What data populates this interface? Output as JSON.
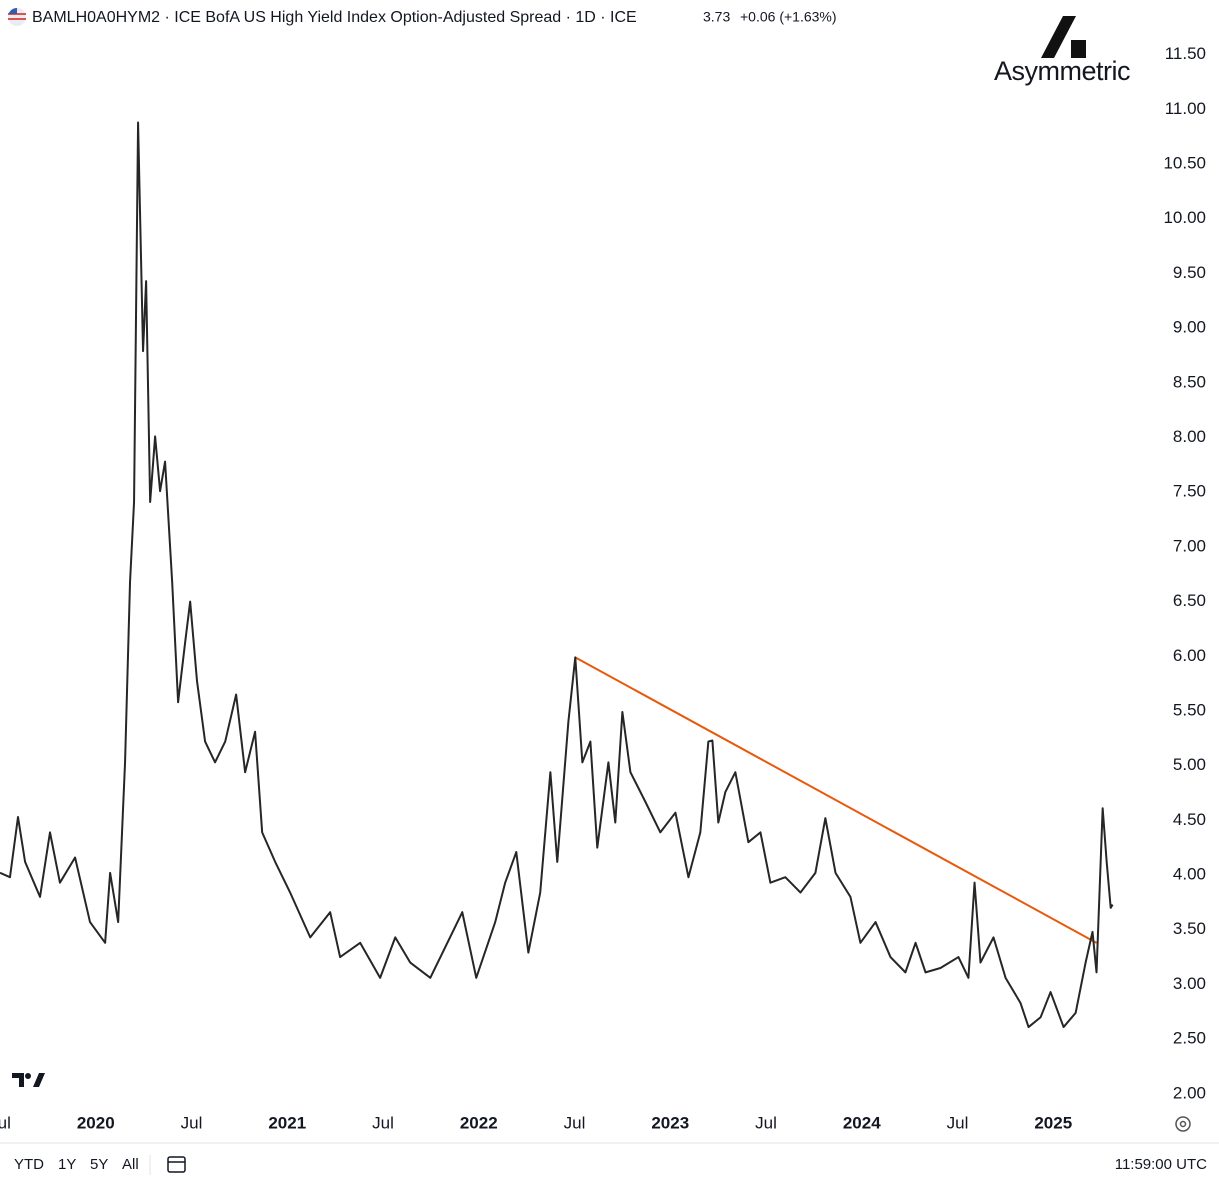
{
  "header": {
    "title": "BAMLH0A0HYM2 · ICE BofA US High Yield Index Option-Adjusted Spread · 1D · ICE",
    "last": "3.73",
    "change": "+0.06 (+1.63%)"
  },
  "logo": "Asymmetric",
  "toolbar": {
    "ranges": [
      "YTD",
      "1Y",
      "5Y",
      "All"
    ],
    "time": "11:59:00 UTC"
  },
  "chart_data": {
    "type": "line",
    "xlim": [
      2019.5,
      2025.5
    ],
    "ylim": [
      1.55,
      12.0
    ],
    "xticks": [
      {
        "value": 2019.5,
        "label": "Jul"
      },
      {
        "value": 2020,
        "label": "2020"
      },
      {
        "value": 2020.5,
        "label": "Jul"
      },
      {
        "value": 2021,
        "label": "2021"
      },
      {
        "value": 2021.5,
        "label": "Jul"
      },
      {
        "value": 2022,
        "label": "2022"
      },
      {
        "value": 2022.5,
        "label": "Jul"
      },
      {
        "value": 2023,
        "label": "2023"
      },
      {
        "value": 2023.5,
        "label": "Jul"
      },
      {
        "value": 2024,
        "label": "2024"
      },
      {
        "value": 2024.5,
        "label": "Jul"
      },
      {
        "value": 2025,
        "label": "2025"
      }
    ],
    "yticks": [
      {
        "value": 2,
        "label": "2.00"
      },
      {
        "value": 2.5,
        "label": "2.50"
      },
      {
        "value": 3,
        "label": "3.00"
      },
      {
        "value": 3.5,
        "label": "3.50"
      },
      {
        "value": 4,
        "label": "4.00"
      },
      {
        "value": 4.5,
        "label": "4.50"
      },
      {
        "value": 5,
        "label": "5.00"
      },
      {
        "value": 5.5,
        "label": "5.50"
      },
      {
        "value": 6,
        "label": "6.00"
      },
      {
        "value": 6.5,
        "label": "6.50"
      },
      {
        "value": 7,
        "label": "7.00"
      },
      {
        "value": 7.5,
        "label": "7.50"
      },
      {
        "value": 8,
        "label": "8.00"
      },
      {
        "value": 8.5,
        "label": "8.50"
      },
      {
        "value": 9,
        "label": "9.00"
      },
      {
        "value": 9.5,
        "label": "9.50"
      },
      {
        "value": 10,
        "label": "10.00"
      },
      {
        "value": 10.5,
        "label": "10.50"
      },
      {
        "value": 11,
        "label": "11.00"
      },
      {
        "value": 11.5,
        "label": "11.50"
      }
    ],
    "grid": false,
    "x": [
      2019.5,
      2019.552,
      2019.594,
      2019.631,
      2019.709,
      2019.761,
      2019.813,
      2019.892,
      2019.97,
      2020.049,
      2020.075,
      2020.117,
      2020.153,
      2020.179,
      2020.2,
      2020.221,
      2020.247,
      2020.263,
      2020.284,
      2020.31,
      2020.336,
      2020.362,
      2020.399,
      2020.43,
      2020.467,
      2020.493,
      2020.529,
      2020.571,
      2020.623,
      2020.676,
      2020.733,
      2020.78,
      2020.832,
      2020.869,
      2020.937,
      2021.015,
      2021.12,
      2021.224,
      2021.276,
      2021.381,
      2021.485,
      2021.564,
      2021.642,
      2021.747,
      2021.825,
      2021.914,
      2021.987,
      2022.086,
      2022.138,
      2022.196,
      2022.259,
      2022.321,
      2022.374,
      2022.41,
      2022.468,
      2022.504,
      2022.541,
      2022.583,
      2022.619,
      2022.677,
      2022.713,
      2022.75,
      2022.792,
      2022.87,
      2022.948,
      2023.027,
      2023.095,
      2023.157,
      2023.199,
      2023.22,
      2023.251,
      2023.288,
      2023.34,
      2023.408,
      2023.471,
      2023.523,
      2023.601,
      2023.68,
      2023.758,
      2023.81,
      2023.863,
      2023.941,
      2023.993,
      2024.072,
      2024.15,
      2024.228,
      2024.281,
      2024.333,
      2024.411,
      2024.505,
      2024.557,
      2024.589,
      2024.62,
      2024.688,
      2024.751,
      2024.829,
      2024.871,
      2024.934,
      2024.986,
      2025.054,
      2025.117,
      2025.169,
      2025.205,
      2025.226,
      2025.258,
      2025.279,
      2025.3,
      2025.31
    ],
    "series": [
      {
        "name": "BAMLH0A0HYM2",
        "color": "#262626",
        "values": [
          4.02,
          3.98,
          4.53,
          4.12,
          3.8,
          4.39,
          3.93,
          4.16,
          3.57,
          3.38,
          4.02,
          3.57,
          5.03,
          6.68,
          7.41,
          10.88,
          8.79,
          9.43,
          7.41,
          8.01,
          7.51,
          7.78,
          6.68,
          5.58,
          6.13,
          6.5,
          5.77,
          5.22,
          5.03,
          5.22,
          5.65,
          4.94,
          5.31,
          4.39,
          4.12,
          3.84,
          3.43,
          3.66,
          3.25,
          3.38,
          3.06,
          3.43,
          3.2,
          3.06,
          3.34,
          3.66,
          3.06,
          3.57,
          3.93,
          4.21,
          3.29,
          3.84,
          4.94,
          4.12,
          5.4,
          5.99,
          5.03,
          5.22,
          4.25,
          5.03,
          4.48,
          5.49,
          4.94,
          4.67,
          4.39,
          4.57,
          3.98,
          4.39,
          5.22,
          5.23,
          4.48,
          4.76,
          4.94,
          4.3,
          4.39,
          3.93,
          3.98,
          3.84,
          4.02,
          4.52,
          4.02,
          3.8,
          3.38,
          3.57,
          3.25,
          3.11,
          3.38,
          3.11,
          3.15,
          3.25,
          3.06,
          3.93,
          3.2,
          3.43,
          3.06,
          2.83,
          2.61,
          2.7,
          2.93,
          2.61,
          2.74,
          3.2,
          3.48,
          3.11,
          4.61,
          4.12,
          3.7,
          3.73
        ]
      }
    ],
    "trendline": {
      "color": "#e8590c",
      "x": [
        2022.504,
        2025.226
      ],
      "values": [
        5.99,
        3.38
      ]
    }
  }
}
